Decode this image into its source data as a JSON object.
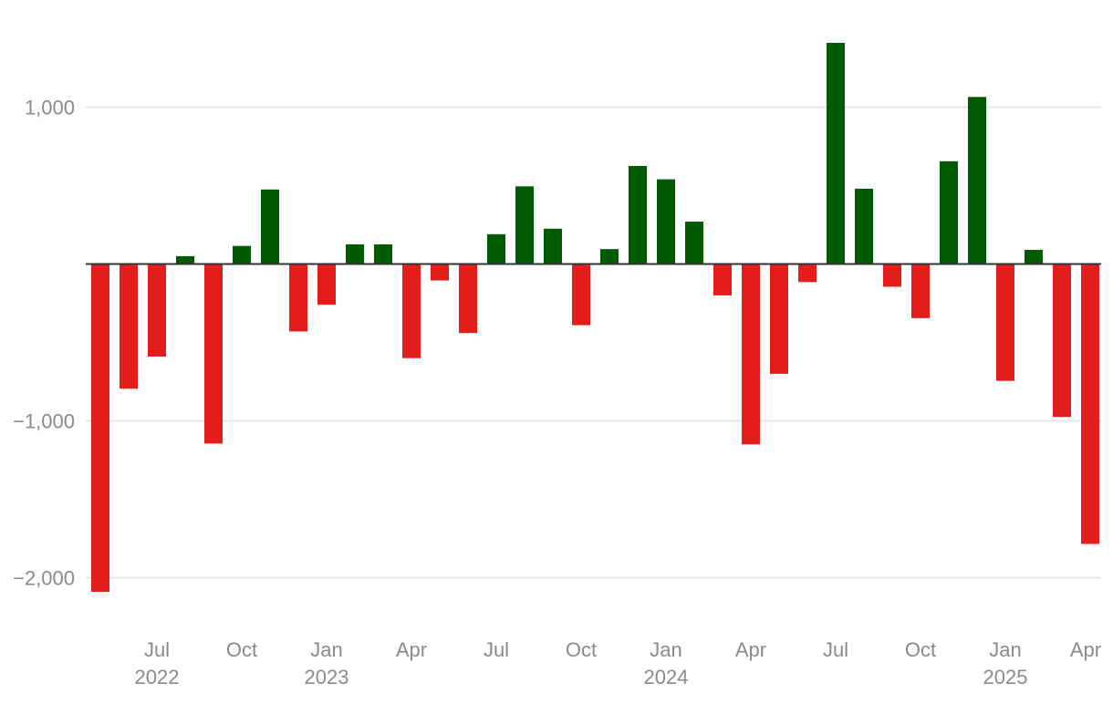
{
  "chart_data": {
    "type": "bar",
    "title": "",
    "xlabel": "",
    "ylabel": "",
    "ylim": [
      -2200,
      1400
    ],
    "grid": true,
    "colors": {
      "positive": "#005a00",
      "negative": "#e31c1c",
      "zero_line": "#333333",
      "grid": "#e0e0e0",
      "tick_text": "#8a8a8a"
    },
    "y_ticks": [
      {
        "value": 1000,
        "label": "1,000"
      },
      {
        "value": -1000,
        "label": "−1,000"
      },
      {
        "value": -2000,
        "label": "−2,000"
      }
    ],
    "categories": [
      "2022-05",
      "2022-06",
      "2022-07",
      "2022-08",
      "2022-09",
      "2022-10",
      "2022-11",
      "2022-12",
      "2023-01",
      "2023-02",
      "2023-03",
      "2023-04",
      "2023-05",
      "2023-06",
      "2023-07",
      "2023-08",
      "2023-09",
      "2023-10",
      "2023-11",
      "2023-12",
      "2024-01",
      "2024-02",
      "2024-03",
      "2024-04",
      "2024-05",
      "2024-06",
      "2024-07",
      "2024-08",
      "2024-09",
      "2024-10",
      "2024-11",
      "2024-12",
      "2025-01",
      "2025-02",
      "2025-03",
      "2025-04"
    ],
    "values": [
      -2090,
      -795,
      -590,
      50,
      -1145,
      115,
      475,
      -430,
      -260,
      125,
      125,
      -600,
      -105,
      -440,
      190,
      495,
      225,
      -390,
      95,
      625,
      540,
      270,
      -200,
      -1150,
      -700,
      -115,
      1410,
      480,
      -145,
      -345,
      655,
      1065,
      -745,
      90,
      -975,
      -1785
    ],
    "x_ticks": [
      {
        "category": "2022-07",
        "label": "Jul",
        "year": "2022"
      },
      {
        "category": "2022-10",
        "label": "Oct",
        "year": ""
      },
      {
        "category": "2023-01",
        "label": "Jan",
        "year": "2023"
      },
      {
        "category": "2023-04",
        "label": "Apr",
        "year": ""
      },
      {
        "category": "2023-07",
        "label": "Jul",
        "year": ""
      },
      {
        "category": "2023-10",
        "label": "Oct",
        "year": ""
      },
      {
        "category": "2024-01",
        "label": "Jan",
        "year": "2024"
      },
      {
        "category": "2024-04",
        "label": "Apr",
        "year": ""
      },
      {
        "category": "2024-07",
        "label": "Jul",
        "year": ""
      },
      {
        "category": "2024-10",
        "label": "Oct",
        "year": ""
      },
      {
        "category": "2025-01",
        "label": "Jan",
        "year": "2025"
      },
      {
        "category": "2025-04",
        "label": "Apr",
        "year": ""
      }
    ]
  }
}
